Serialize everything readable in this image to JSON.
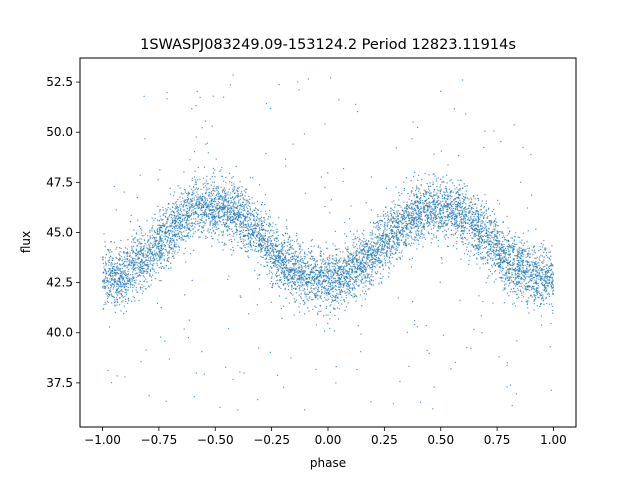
{
  "chart_data": {
    "type": "scatter",
    "title": "1SWASPJ083249.09-153124.2 Period 12823.11914s",
    "xlabel": "phase",
    "ylabel": "flux",
    "xlim": [
      -1.1,
      1.1
    ],
    "ylim": [
      35.3,
      53.7
    ],
    "xticks": [
      -1.0,
      -0.75,
      -0.5,
      -0.25,
      0.0,
      0.25,
      0.5,
      0.75,
      1.0
    ],
    "xtick_labels": [
      "−1.00",
      "−0.75",
      "−0.50",
      "−0.25",
      "0.00",
      "0.25",
      "0.50",
      "0.75",
      "1.00"
    ],
    "yticks": [
      37.5,
      40.0,
      42.5,
      45.0,
      47.5,
      50.0,
      52.5
    ],
    "ytick_labels": [
      "37.5",
      "40.0",
      "42.5",
      "45.0",
      "47.5",
      "50.0",
      "52.5"
    ],
    "grid": false,
    "marker_color": "#1f77b4",
    "series": [
      {
        "x": [
          -1.0,
          -0.9,
          -0.8,
          -0.7,
          -0.6,
          -0.5,
          -0.4,
          -0.3,
          -0.2,
          -0.1,
          0.0,
          0.1,
          0.2,
          0.3,
          0.4,
          0.5,
          0.6,
          0.7,
          0.8,
          0.9,
          1.0
        ],
        "y": [
          42.6,
          42.9,
          43.8,
          45.1,
          46.1,
          46.3,
          45.9,
          44.8,
          43.5,
          42.8,
          42.7,
          43.0,
          43.9,
          45.1,
          46.0,
          46.3,
          45.9,
          44.8,
          43.6,
          42.8,
          42.6
        ]
      }
    ]
  }
}
